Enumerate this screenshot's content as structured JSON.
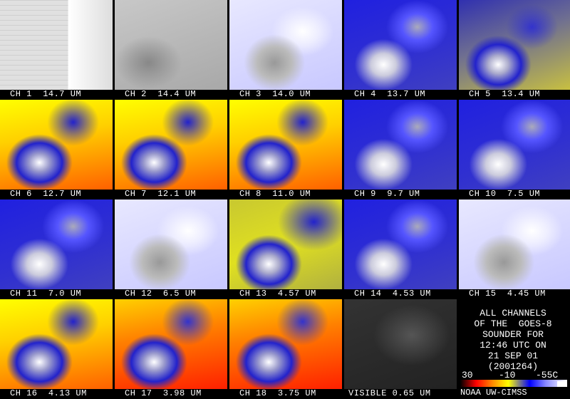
{
  "tiles": [
    "CH 1  14.7 UM",
    "CH 2  14.4 UM",
    "CH 3  14.0 UM",
    "CH 4  13.7 UM",
    "CH 5  13.4 UM",
    "CH 6  12.7 UM",
    "CH 7  12.1 UM",
    "CH 8  11.0 UM",
    "CH 9  9.7 UM",
    "CH 10  7.5 UM",
    "CH 11  7.0 UM",
    "CH 12  6.5 UM",
    "CH 13  4.57 UM",
    "CH 14  4.53 UM",
    "CH 15  4.45 UM",
    "CH 16  4.13 UM",
    "CH 17  3.98 UM",
    "CH 18  3.75 UM",
    "VISIBLE 0.65 UM"
  ],
  "info": {
    "lines": [
      "ALL CHANNELS",
      "OF THE  GOES-8",
      "SOUNDER FOR",
      "12:46 UTC ON",
      "21 SEP 01",
      "(2001264)"
    ],
    "scale": [
      "30",
      "-10",
      "-55C"
    ],
    "credit": "NOAA UW-CIMSS"
  }
}
